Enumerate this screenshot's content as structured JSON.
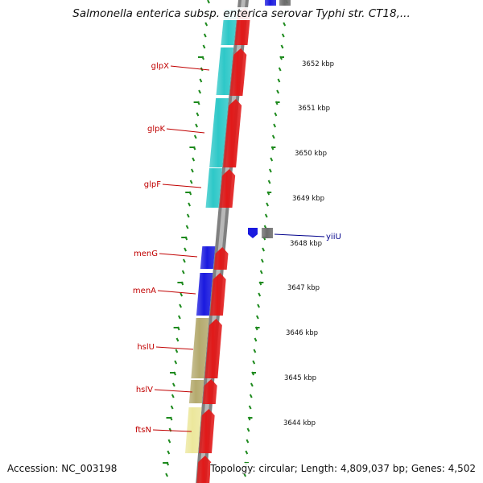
{
  "title": "Salmonella enterica subsp. enterica serovar Typhi str. CT18,...",
  "accession": "Accession: NC_003198",
  "topology": "Topology: circular; Length: 4,809,037 bp; Genes: 4,502",
  "colors": {
    "cyan": "#2ec8c8",
    "blue": "#1a1adf",
    "khaki": "#b4aa6e",
    "pale_yellow": "#ece79c",
    "red": "#e11919",
    "gray": "#6c6c6c",
    "tick_green": "#1d8a1d",
    "label_red": "#c00000",
    "label_blue": "#00008b"
  },
  "genes": [
    {
      "name": "glpX",
      "strand": "left"
    },
    {
      "name": "glpK",
      "strand": "left"
    },
    {
      "name": "glpF",
      "strand": "left"
    },
    {
      "name": "menG",
      "strand": "left"
    },
    {
      "name": "menA",
      "strand": "left"
    },
    {
      "name": "hslU",
      "strand": "left"
    },
    {
      "name": "hslV",
      "strand": "left"
    },
    {
      "name": "ftsN",
      "strand": "left"
    },
    {
      "name": "yiiU",
      "strand": "right"
    }
  ],
  "kbp_labels": [
    "3652 kbp",
    "3651 kbp",
    "3650 kbp",
    "3649 kbp",
    "3648 kbp",
    "3647 kbp",
    "3646 kbp",
    "3645 kbp",
    "3644 kbp"
  ]
}
